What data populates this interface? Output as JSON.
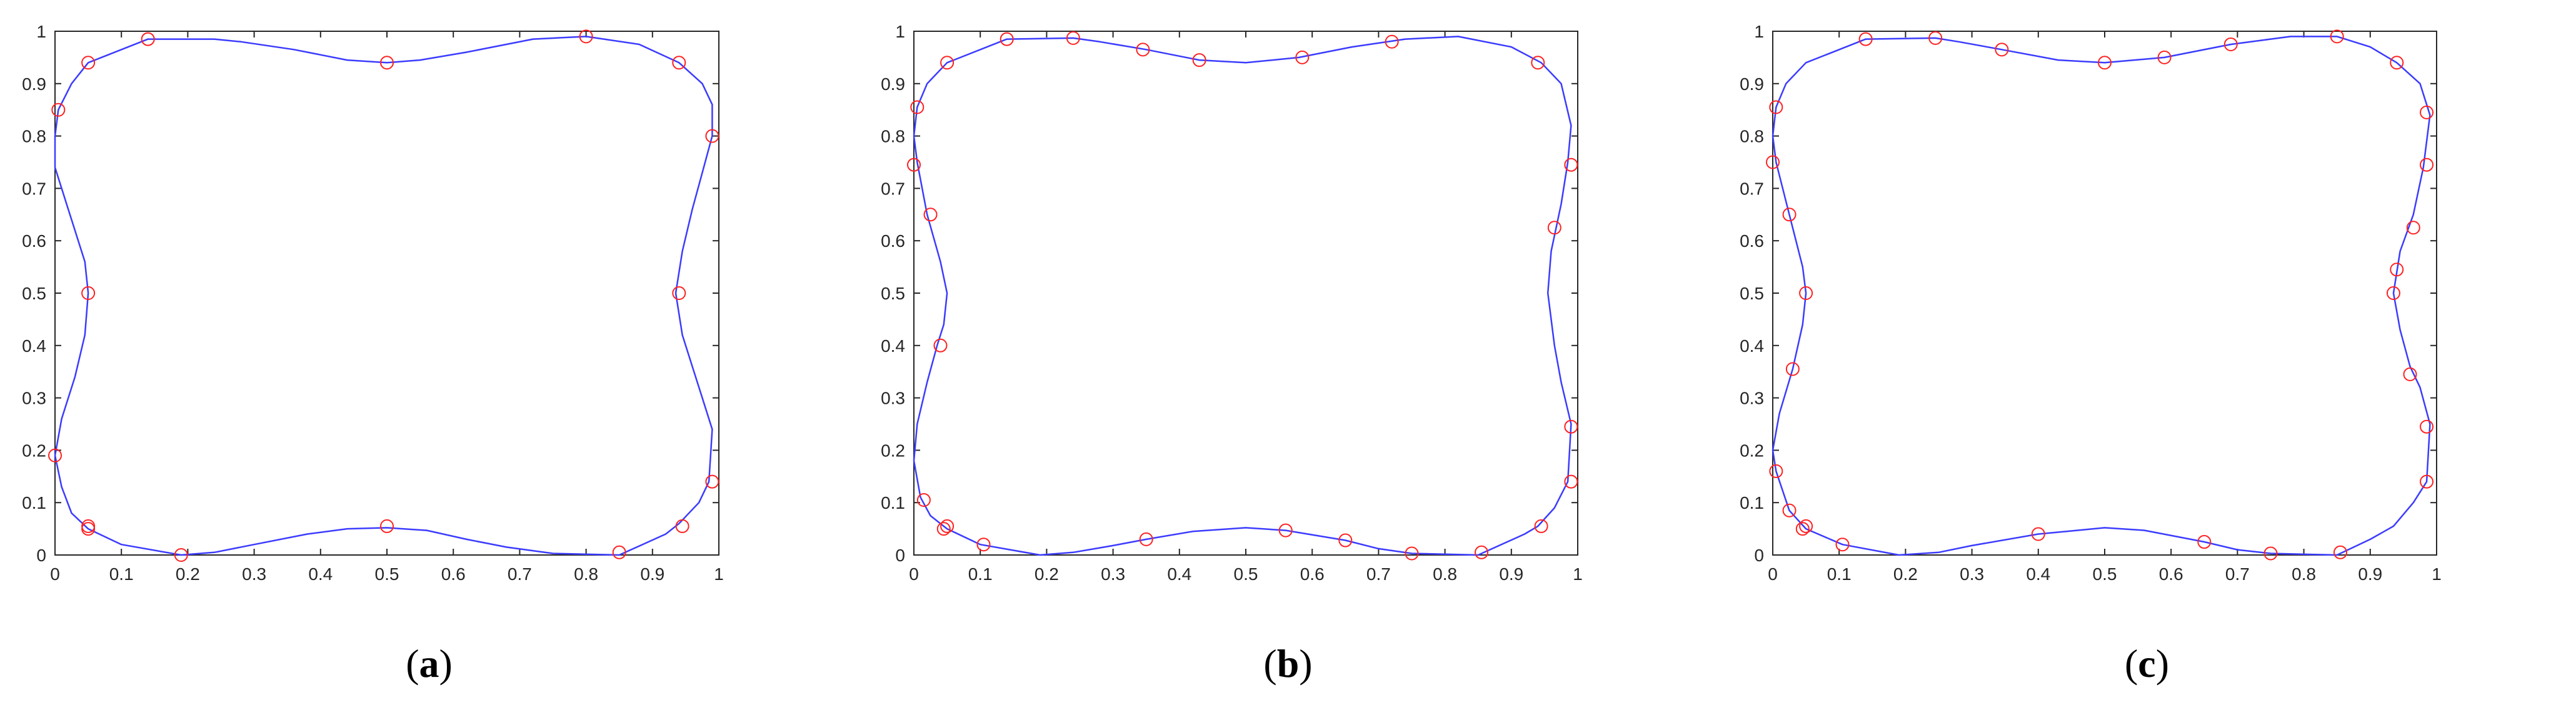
{
  "chart_data": [
    {
      "type": "line",
      "caption_open": "(",
      "caption_letter": "a",
      "caption_close": ")",
      "xlim": [
        0,
        1
      ],
      "ylim": [
        0,
        1
      ],
      "xticks": [
        "0",
        "0.1",
        "0.2",
        "0.3",
        "0.4",
        "0.5",
        "0.6",
        "0.7",
        "0.8",
        "0.9",
        "1"
      ],
      "yticks": [
        "0",
        "0.1",
        "0.2",
        "0.3",
        "0.4",
        "0.5",
        "0.6",
        "0.7",
        "0.8",
        "0.9",
        "1"
      ],
      "grid": false,
      "series": [
        {
          "role": "curve",
          "color": "#3b3bff",
          "points": [
            [
              0.85,
              0.0
            ],
            [
              0.92,
              0.04
            ],
            [
              0.94,
              0.06
            ],
            [
              0.97,
              0.1
            ],
            [
              0.985,
              0.14
            ],
            [
              0.99,
              0.24
            ],
            [
              0.975,
              0.3
            ],
            [
              0.96,
              0.36
            ],
            [
              0.945,
              0.42
            ],
            [
              0.935,
              0.5
            ],
            [
              0.945,
              0.58
            ],
            [
              0.96,
              0.66
            ],
            [
              0.975,
              0.73
            ],
            [
              0.99,
              0.8
            ],
            [
              0.99,
              0.86
            ],
            [
              0.975,
              0.9
            ],
            [
              0.94,
              0.94
            ],
            [
              0.88,
              0.975
            ],
            [
              0.8,
              0.99
            ],
            [
              0.72,
              0.985
            ],
            [
              0.62,
              0.96
            ],
            [
              0.55,
              0.945
            ],
            [
              0.5,
              0.94
            ],
            [
              0.44,
              0.945
            ],
            [
              0.36,
              0.965
            ],
            [
              0.28,
              0.98
            ],
            [
              0.24,
              0.985
            ],
            [
              0.14,
              0.985
            ],
            [
              0.05,
              0.94
            ],
            [
              0.025,
              0.9
            ],
            [
              0.005,
              0.85
            ],
            [
              0.0,
              0.8
            ],
            [
              0.0,
              0.74
            ],
            [
              0.02,
              0.66
            ],
            [
              0.045,
              0.56
            ],
            [
              0.05,
              0.5
            ],
            [
              0.045,
              0.42
            ],
            [
              0.03,
              0.34
            ],
            [
              0.01,
              0.26
            ],
            [
              0.0,
              0.19
            ],
            [
              0.01,
              0.13
            ],
            [
              0.025,
              0.08
            ],
            [
              0.05,
              0.05
            ],
            [
              0.1,
              0.02
            ],
            [
              0.19,
              0.0
            ],
            [
              0.24,
              0.005
            ],
            [
              0.3,
              0.02
            ],
            [
              0.38,
              0.04
            ],
            [
              0.44,
              0.05
            ],
            [
              0.5,
              0.052
            ],
            [
              0.56,
              0.047
            ],
            [
              0.62,
              0.03
            ],
            [
              0.68,
              0.015
            ],
            [
              0.75,
              0.003
            ],
            [
              0.85,
              0.0
            ]
          ]
        },
        {
          "role": "nodes",
          "color": "#ff2020",
          "points": [
            [
              0.005,
              0.85
            ],
            [
              0.05,
              0.94
            ],
            [
              0.14,
              0.985
            ],
            [
              0.5,
              0.94
            ],
            [
              0.8,
              0.99
            ],
            [
              0.94,
              0.94
            ],
            [
              0.99,
              0.8
            ],
            [
              0.94,
              0.5
            ],
            [
              0.99,
              0.14
            ],
            [
              0.945,
              0.055
            ],
            [
              0.85,
              0.005
            ],
            [
              0.5,
              0.055
            ],
            [
              0.19,
              0.0
            ],
            [
              0.05,
              0.055
            ],
            [
              0.05,
              0.05
            ],
            [
              0.0,
              0.19
            ],
            [
              0.05,
              0.5
            ]
          ]
        }
      ]
    },
    {
      "type": "line",
      "caption_open": "(",
      "caption_letter": "b",
      "caption_close": ")",
      "xlim": [
        0,
        1
      ],
      "ylim": [
        0,
        1
      ],
      "xticks": [
        "0",
        "0.1",
        "0.2",
        "0.3",
        "0.4",
        "0.5",
        "0.6",
        "0.7",
        "0.8",
        "0.9",
        "1"
      ],
      "yticks": [
        "0",
        "0.1",
        "0.2",
        "0.3",
        "0.4",
        "0.5",
        "0.6",
        "0.7",
        "0.8",
        "0.9",
        "1"
      ],
      "grid": false,
      "series": [
        {
          "role": "curve",
          "color": "#3b3bff",
          "points": [
            [
              0.85,
              0.0
            ],
            [
              0.92,
              0.04
            ],
            [
              0.94,
              0.055
            ],
            [
              0.965,
              0.09
            ],
            [
              0.985,
              0.14
            ],
            [
              0.99,
              0.25
            ],
            [
              0.975,
              0.33
            ],
            [
              0.965,
              0.4
            ],
            [
              0.955,
              0.5
            ],
            [
              0.96,
              0.58
            ],
            [
              0.975,
              0.67
            ],
            [
              0.985,
              0.75
            ],
            [
              0.99,
              0.82
            ],
            [
              0.975,
              0.9
            ],
            [
              0.945,
              0.94
            ],
            [
              0.9,
              0.97
            ],
            [
              0.82,
              0.99
            ],
            [
              0.74,
              0.985
            ],
            [
              0.66,
              0.97
            ],
            [
              0.58,
              0.95
            ],
            [
              0.5,
              0.94
            ],
            [
              0.43,
              0.945
            ],
            [
              0.35,
              0.965
            ],
            [
              0.28,
              0.98
            ],
            [
              0.24,
              0.987
            ],
            [
              0.14,
              0.985
            ],
            [
              0.05,
              0.94
            ],
            [
              0.02,
              0.9
            ],
            [
              0.005,
              0.855
            ],
            [
              0.0,
              0.8
            ],
            [
              0.005,
              0.75
            ],
            [
              0.02,
              0.65
            ],
            [
              0.04,
              0.56
            ],
            [
              0.05,
              0.5
            ],
            [
              0.045,
              0.44
            ],
            [
              0.035,
              0.4
            ],
            [
              0.02,
              0.33
            ],
            [
              0.005,
              0.25
            ],
            [
              0.0,
              0.18
            ],
            [
              0.01,
              0.11
            ],
            [
              0.025,
              0.075
            ],
            [
              0.05,
              0.05
            ],
            [
              0.1,
              0.02
            ],
            [
              0.19,
              0.0
            ],
            [
              0.24,
              0.005
            ],
            [
              0.3,
              0.018
            ],
            [
              0.35,
              0.03
            ],
            [
              0.42,
              0.045
            ],
            [
              0.5,
              0.052
            ],
            [
              0.56,
              0.047
            ],
            [
              0.65,
              0.028
            ],
            [
              0.7,
              0.012
            ],
            [
              0.75,
              0.003
            ],
            [
              0.85,
              0.0
            ]
          ]
        },
        {
          "role": "nodes",
          "color": "#ff2020",
          "points": [
            [
              0.005,
              0.855
            ],
            [
              0.05,
              0.94
            ],
            [
              0.14,
              0.985
            ],
            [
              0.24,
              0.987
            ],
            [
              0.345,
              0.965
            ],
            [
              0.43,
              0.945
            ],
            [
              0.585,
              0.95
            ],
            [
              0.72,
              0.98
            ],
            [
              0.94,
              0.94
            ],
            [
              0.99,
              0.745
            ],
            [
              0.965,
              0.625
            ],
            [
              0.99,
              0.245
            ],
            [
              0.99,
              0.14
            ],
            [
              0.945,
              0.055
            ],
            [
              0.855,
              0.005
            ],
            [
              0.75,
              0.003
            ],
            [
              0.65,
              0.028
            ],
            [
              0.56,
              0.047
            ],
            [
              0.35,
              0.03
            ],
            [
              0.105,
              0.02
            ],
            [
              0.05,
              0.055
            ],
            [
              0.045,
              0.05
            ],
            [
              0.015,
              0.105
            ],
            [
              0.0,
              0.745
            ],
            [
              0.025,
              0.65
            ],
            [
              0.04,
              0.4
            ]
          ]
        }
      ]
    },
    {
      "type": "line",
      "caption_open": "(",
      "caption_letter": "c",
      "caption_close": ")",
      "xlim": [
        0,
        1
      ],
      "ylim": [
        0,
        1
      ],
      "xticks": [
        "0",
        "0.1",
        "0.2",
        "0.3",
        "0.4",
        "0.5",
        "0.6",
        "0.7",
        "0.8",
        "0.9",
        "1"
      ],
      "yticks": [
        "0",
        "0.1",
        "0.2",
        "0.3",
        "0.4",
        "0.5",
        "0.6",
        "0.7",
        "0.8",
        "0.9",
        "1"
      ],
      "grid": false,
      "series": [
        {
          "role": "curve",
          "color": "#3b3bff",
          "points": [
            [
              0.85,
              0.0
            ],
            [
              0.9,
              0.03
            ],
            [
              0.935,
              0.055
            ],
            [
              0.965,
              0.1
            ],
            [
              0.985,
              0.14
            ],
            [
              0.99,
              0.25
            ],
            [
              0.975,
              0.32
            ],
            [
              0.96,
              0.36
            ],
            [
              0.945,
              0.43
            ],
            [
              0.935,
              0.5
            ],
            [
              0.945,
              0.58
            ],
            [
              0.965,
              0.65
            ],
            [
              0.98,
              0.74
            ],
            [
              0.99,
              0.84
            ],
            [
              0.975,
              0.9
            ],
            [
              0.94,
              0.94
            ],
            [
              0.9,
              0.97
            ],
            [
              0.85,
              0.99
            ],
            [
              0.78,
              0.99
            ],
            [
              0.69,
              0.975
            ],
            [
              0.59,
              0.95
            ],
            [
              0.5,
              0.94
            ],
            [
              0.43,
              0.945
            ],
            [
              0.345,
              0.965
            ],
            [
              0.28,
              0.98
            ],
            [
              0.245,
              0.987
            ],
            [
              0.14,
              0.985
            ],
            [
              0.05,
              0.94
            ],
            [
              0.02,
              0.9
            ],
            [
              0.005,
              0.855
            ],
            [
              0.0,
              0.8
            ],
            [
              0.005,
              0.75
            ],
            [
              0.025,
              0.65
            ],
            [
              0.045,
              0.55
            ],
            [
              0.05,
              0.5
            ],
            [
              0.045,
              0.44
            ],
            [
              0.03,
              0.355
            ],
            [
              0.01,
              0.27
            ],
            [
              0.0,
              0.2
            ],
            [
              0.005,
              0.16
            ],
            [
              0.025,
              0.085
            ],
            [
              0.05,
              0.05
            ],
            [
              0.105,
              0.02
            ],
            [
              0.19,
              0.0
            ],
            [
              0.25,
              0.005
            ],
            [
              0.3,
              0.018
            ],
            [
              0.4,
              0.04
            ],
            [
              0.5,
              0.052
            ],
            [
              0.56,
              0.047
            ],
            [
              0.65,
              0.025
            ],
            [
              0.7,
              0.01
            ],
            [
              0.75,
              0.003
            ],
            [
              0.85,
              0.0
            ]
          ]
        },
        {
          "role": "nodes",
          "color": "#ff2020",
          "points": [
            [
              0.005,
              0.855
            ],
            [
              0.14,
              0.985
            ],
            [
              0.245,
              0.987
            ],
            [
              0.345,
              0.965
            ],
            [
              0.5,
              0.94
            ],
            [
              0.59,
              0.95
            ],
            [
              0.69,
              0.975
            ],
            [
              0.85,
              0.99
            ],
            [
              0.94,
              0.94
            ],
            [
              0.985,
              0.845
            ],
            [
              0.985,
              0.745
            ],
            [
              0.965,
              0.625
            ],
            [
              0.94,
              0.545
            ],
            [
              0.935,
              0.5
            ],
            [
              0.96,
              0.345
            ],
            [
              0.985,
              0.245
            ],
            [
              0.985,
              0.14
            ],
            [
              0.855,
              0.005
            ],
            [
              0.75,
              0.003
            ],
            [
              0.65,
              0.025
            ],
            [
              0.4,
              0.04
            ],
            [
              0.105,
              0.02
            ],
            [
              0.05,
              0.055
            ],
            [
              0.045,
              0.05
            ],
            [
              0.025,
              0.085
            ],
            [
              0.005,
              0.16
            ],
            [
              0.03,
              0.355
            ],
            [
              0.05,
              0.5
            ],
            [
              0.025,
              0.65
            ],
            [
              0.0,
              0.75
            ]
          ]
        }
      ]
    }
  ]
}
